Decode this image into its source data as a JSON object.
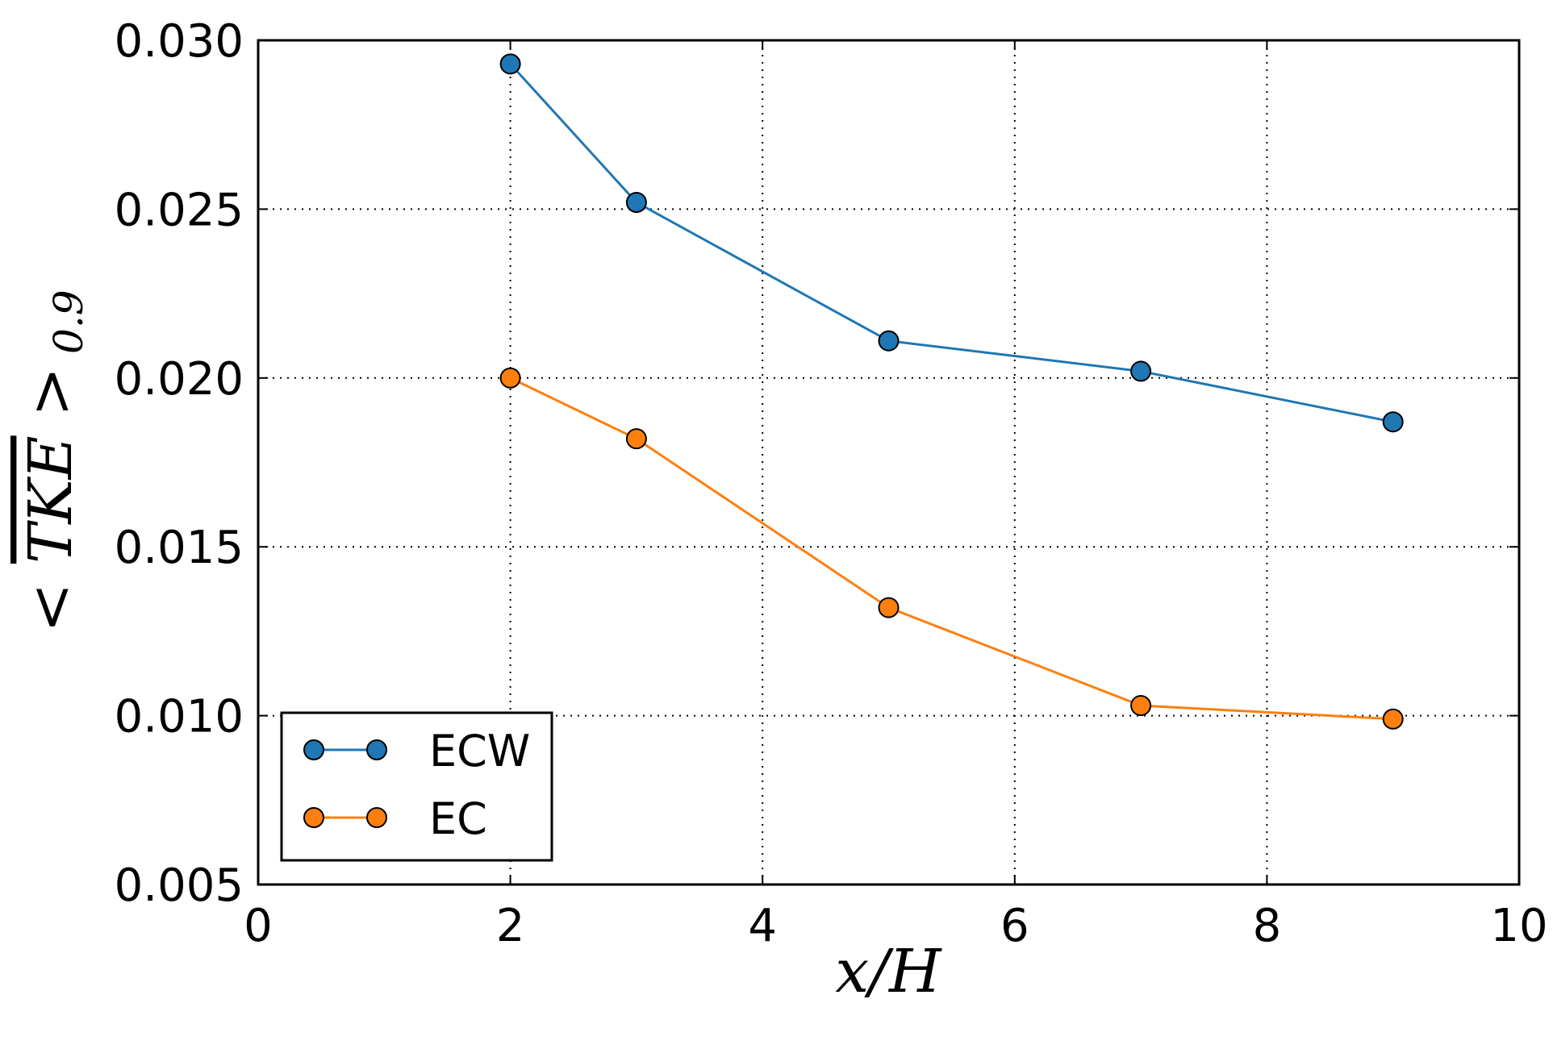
{
  "chart_data": {
    "type": "line",
    "title": "",
    "xlabel": "x/H",
    "ylabel": "<TKE>0.9",
    "xlim": [
      0,
      10
    ],
    "ylim": [
      0.005,
      0.03
    ],
    "xticks": [
      "0",
      "2",
      "4",
      "6",
      "8",
      "10"
    ],
    "yticks": [
      "0.005",
      "0.010",
      "0.015",
      "0.020",
      "0.025",
      "0.030"
    ],
    "grid": true,
    "legend_position": "lower-left",
    "series": [
      {
        "name": "ECW",
        "color": "#1f77b4",
        "x": [
          2,
          3,
          5,
          7,
          9
        ],
        "y": [
          0.0293,
          0.0252,
          0.0211,
          0.0202,
          0.0187
        ]
      },
      {
        "name": "EC",
        "color": "#ff7f0e",
        "x": [
          2,
          3,
          5,
          7,
          9
        ],
        "y": [
          0.02,
          0.0182,
          0.0132,
          0.0103,
          0.0099
        ]
      }
    ]
  }
}
